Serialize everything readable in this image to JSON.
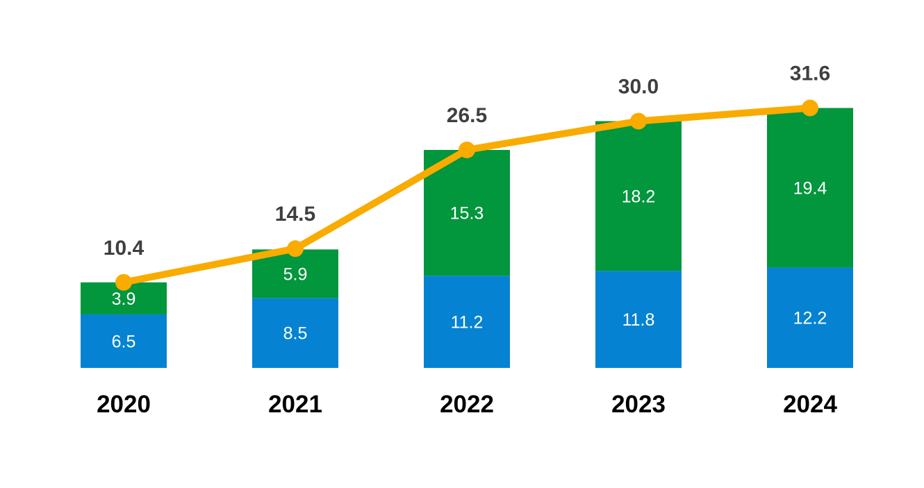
{
  "chart_data": {
    "type": "bar",
    "stacked": true,
    "categories": [
      "2020",
      "2021",
      "2022",
      "2023",
      "2024"
    ],
    "series": [
      {
        "values": [
          6.5,
          8.5,
          11.2,
          11.8,
          12.2
        ],
        "color": "#0583d2"
      },
      {
        "values": [
          3.9,
          5.9,
          15.3,
          18.2,
          19.4
        ],
        "color": "#02963d"
      }
    ],
    "line": {
      "values": [
        10.4,
        14.5,
        26.5,
        30.0,
        31.6
      ],
      "color": "#f9ab00"
    },
    "segment_labels": [
      [
        "6.5",
        "8.5",
        "11.2",
        "11.8",
        "12.2"
      ],
      [
        "3.9",
        "5.9",
        "15.3",
        "18.2",
        "19.4"
      ]
    ],
    "total_labels": [
      "10.4",
      "14.5",
      "26.5",
      "30.0",
      "31.6"
    ],
    "title": "",
    "xlabel": "",
    "ylabel": "",
    "ylim": [
      0,
      31.6
    ],
    "grid": false,
    "legend": "none"
  }
}
